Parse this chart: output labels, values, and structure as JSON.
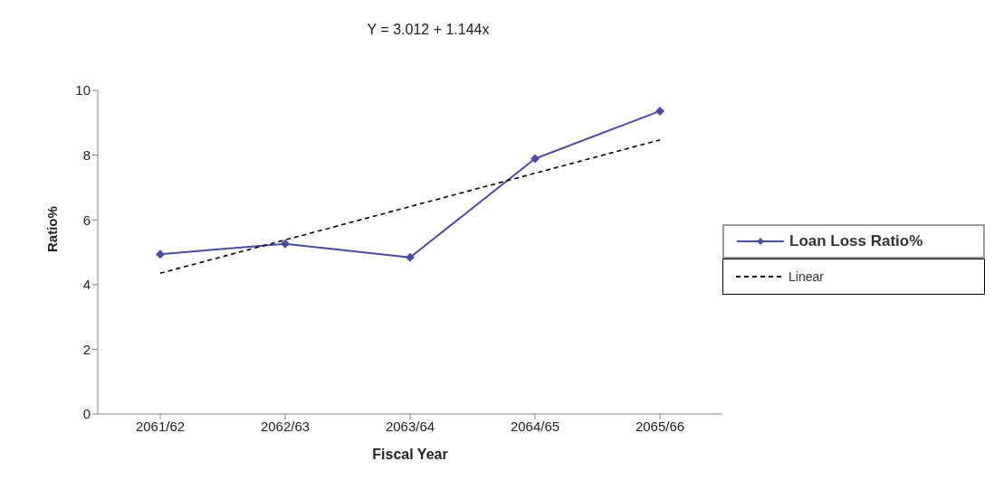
{
  "chart_data": {
    "type": "line",
    "xlabel": "Fiscal Year",
    "ylabel": "Ratio%",
    "annotations": [
      "Y = 3.012 + 1.144x"
    ],
    "categories": [
      "2061/62",
      "2062/63",
      "2063/64",
      "2064/65",
      "2065/66"
    ],
    "series": [
      {
        "name": "Loan Loss Ratio%",
        "color": "#4b4ba0",
        "values": [
          4.94,
          5.26,
          4.84,
          7.89,
          9.36
        ],
        "marker": "diamond",
        "line_style": "solid"
      },
      {
        "name": "Linear",
        "type": "line",
        "color": "#000000",
        "values": [
          4.35,
          null,
          null,
          null,
          8.47
        ],
        "marker": "none",
        "line_style": "dashed"
      }
    ],
    "ylim": [
      0,
      10
    ],
    "yticks": [
      0,
      2,
      4,
      6,
      8,
      10
    ],
    "grid": false,
    "legend": "right"
  }
}
